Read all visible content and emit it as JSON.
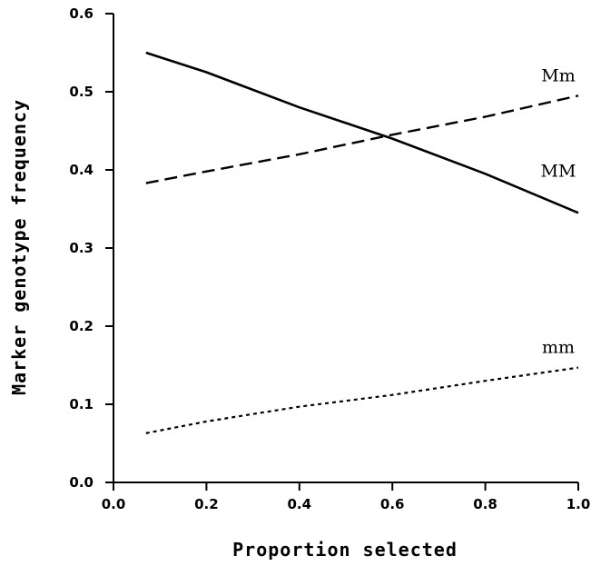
{
  "chart_data": {
    "type": "line",
    "title": "",
    "xlabel": "Proportion selected",
    "ylabel": "Marker genotype frequency",
    "xlim": [
      0.0,
      1.0
    ],
    "ylim": [
      0.0,
      0.6
    ],
    "x_ticks": [
      "0.0",
      "0.2",
      "0.4",
      "0.6",
      "0.8",
      "1.0"
    ],
    "y_ticks": [
      "0.0",
      "0.1",
      "0.2",
      "0.3",
      "0.4",
      "0.5",
      "0.6"
    ],
    "grid": false,
    "legend": "none (series labelled directly on plot)",
    "series": [
      {
        "name": "MM",
        "style": "solid",
        "x": [
          0.07,
          0.2,
          0.4,
          0.6,
          0.8,
          1.0
        ],
        "y": [
          0.55,
          0.525,
          0.48,
          0.44,
          0.395,
          0.345
        ]
      },
      {
        "name": "Mm",
        "style": "dashed",
        "x": [
          0.07,
          0.2,
          0.4,
          0.6,
          0.8,
          1.0
        ],
        "y": [
          0.383,
          0.398,
          0.42,
          0.445,
          0.468,
          0.495
        ]
      },
      {
        "name": "mm",
        "style": "dotted",
        "x": [
          0.07,
          0.2,
          0.4,
          0.6,
          0.8,
          1.0
        ],
        "y": [
          0.063,
          0.078,
          0.097,
          0.112,
          0.13,
          0.147
        ]
      }
    ]
  }
}
